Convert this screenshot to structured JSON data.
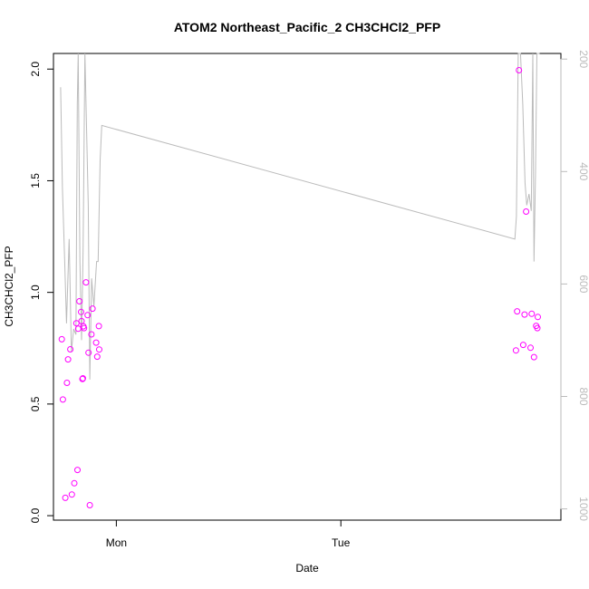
{
  "chart_data": {
    "type": "scatter",
    "title": "ATOM2 Northeast_Pacific_2 CH3CHCl2_PFP",
    "xlabel": "Date",
    "ylabel": "CH3CHCl2_PFP",
    "x_ticks": [
      {
        "label": "Mon",
        "day": 1.0
      },
      {
        "label": "Tue",
        "day": 2.0
      }
    ],
    "xlim_days": [
      0.72,
      2.98
    ],
    "ylim": [
      -0.02,
      2.07
    ],
    "y_ticks": [
      0.0,
      0.5,
      1.0,
      1.5,
      2.0
    ],
    "y_tick_labels": [
      "0.0",
      "0.5",
      "1.0",
      "1.5",
      "2.0"
    ],
    "right_axis": {
      "ticks": [
        200,
        400,
        600,
        800,
        1000
      ],
      "tick_labels": [
        "200",
        "400",
        "600",
        "800",
        "1000"
      ],
      "ylim": [
        1020,
        190
      ],
      "color": "#bbbbbb"
    },
    "series": [
      {
        "kind": "points",
        "color": "#ff00ff",
        "points": [
          [
            0.757,
            0.79
          ],
          [
            0.762,
            0.52
          ],
          [
            0.773,
            0.08
          ],
          [
            0.78,
            0.595
          ],
          [
            0.785,
            0.7
          ],
          [
            0.795,
            0.745
          ],
          [
            0.802,
            0.095
          ],
          [
            0.813,
            0.145
          ],
          [
            0.822,
            0.862
          ],
          [
            0.827,
            0.205
          ],
          [
            0.83,
            0.837
          ],
          [
            0.836,
            0.96
          ],
          [
            0.843,
            0.912
          ],
          [
            0.845,
            0.871
          ],
          [
            0.849,
            0.612
          ],
          [
            0.851,
            0.615
          ],
          [
            0.853,
            0.848
          ],
          [
            0.856,
            0.84
          ],
          [
            0.865,
            1.045
          ],
          [
            0.872,
            0.898
          ],
          [
            0.876,
            0.73
          ],
          [
            0.882,
            0.047
          ],
          [
            0.889,
            0.812
          ],
          [
            0.894,
            0.927
          ],
          [
            0.91,
            0.775
          ],
          [
            0.915,
            0.712
          ],
          [
            0.922,
            0.849
          ],
          [
            0.924,
            0.744
          ],
          [
            2.78,
            0.74
          ],
          [
            2.785,
            0.915
          ],
          [
            2.793,
            1.995
          ],
          [
            2.812,
            0.765
          ],
          [
            2.818,
            0.901
          ],
          [
            2.825,
            1.362
          ],
          [
            2.845,
            0.752
          ],
          [
            2.85,
            0.904
          ],
          [
            2.86,
            0.71
          ],
          [
            2.87,
            0.85
          ],
          [
            2.875,
            0.84
          ],
          [
            2.877,
            0.89
          ]
        ]
      },
      {
        "kind": "line",
        "axis": "right",
        "color": "#bbbbbb",
        "points": [
          [
            0.752,
            250
          ],
          [
            0.76,
            430
          ],
          [
            0.77,
            560
          ],
          [
            0.778,
            670
          ],
          [
            0.79,
            520
          ],
          [
            0.8,
            720
          ],
          [
            0.81,
            680
          ],
          [
            0.82,
            690
          ],
          [
            0.826,
            280
          ],
          [
            0.83,
            150
          ],
          [
            0.838,
            560
          ],
          [
            0.845,
            700
          ],
          [
            0.852,
            540
          ],
          [
            0.86,
            150
          ],
          [
            0.875,
            460
          ],
          [
            0.882,
            770
          ],
          [
            0.89,
            590
          ],
          [
            0.9,
            640
          ],
          [
            0.912,
            560
          ],
          [
            0.919,
            560
          ],
          [
            0.928,
            380
          ],
          [
            0.935,
            318
          ],
          [
            2.775,
            520
          ],
          [
            2.782,
            480
          ],
          [
            2.79,
            150
          ],
          [
            2.8,
            150
          ],
          [
            2.81,
            280
          ],
          [
            2.82,
            420
          ],
          [
            2.828,
            460
          ],
          [
            2.838,
            440
          ],
          [
            2.848,
            470
          ],
          [
            2.855,
            150
          ],
          [
            2.86,
            560
          ],
          [
            2.867,
            400
          ],
          [
            2.873,
            150
          ],
          [
            2.885,
            150
          ]
        ]
      }
    ]
  }
}
